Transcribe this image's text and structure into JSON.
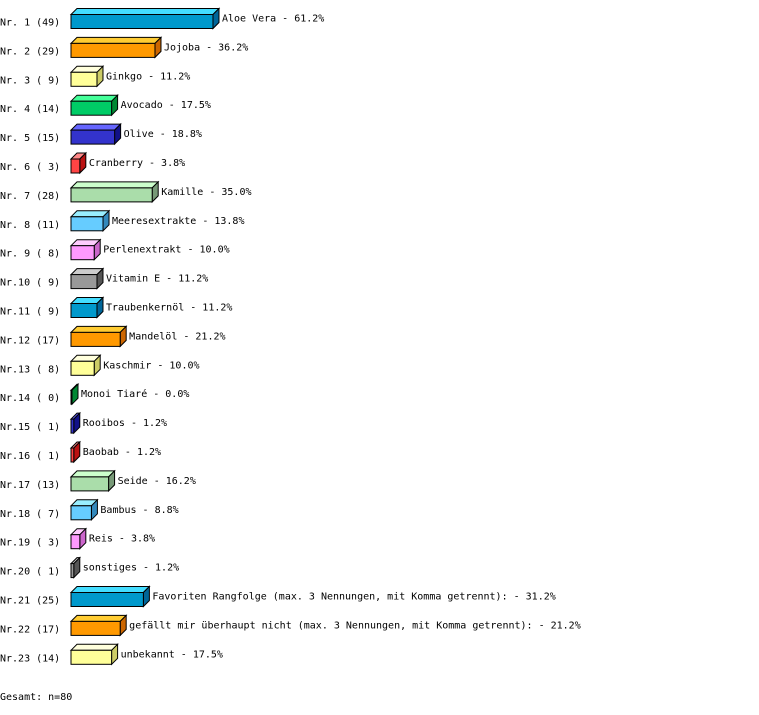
{
  "chart_data": {
    "type": "bar",
    "orientation": "horizontal",
    "style": "3d",
    "unit": "%",
    "categories": [
      "Aloe Vera",
      "Jojoba",
      "Ginkgo",
      "Avocado",
      "Olive",
      "Cranberry",
      "Kamille",
      "Meeresextrakte",
      "Perlenextrakt",
      "Vitamin E",
      "Traubenkernöl",
      "Mandelöl",
      "Kaschmir",
      "Monoi Tiaré",
      "Rooibos",
      "Baobab",
      "Seide",
      "Bambus",
      "Reis",
      "sonstiges",
      "Favoriten Rangfolge (max. 3 Nennungen, mit Komma getrennt):",
      "gefällt mir überhaupt nicht (max. 3 Nennungen, mit Komma getrennt):",
      "unbekannt"
    ],
    "row_labels": [
      "Nr. 1",
      "Nr. 2",
      "Nr. 3",
      "Nr. 4",
      "Nr. 5",
      "Nr. 6",
      "Nr. 7",
      "Nr. 8",
      "Nr. 9",
      "Nr.10",
      "Nr.11",
      "Nr.12",
      "Nr.13",
      "Nr.14",
      "Nr.15",
      "Nr.16",
      "Nr.17",
      "Nr.18",
      "Nr.19",
      "Nr.20",
      "Nr.21",
      "Nr.22",
      "Nr.23"
    ],
    "counts": [
      49,
      29,
      9,
      14,
      15,
      3,
      28,
      11,
      8,
      9,
      9,
      17,
      8,
      0,
      1,
      1,
      13,
      7,
      3,
      1,
      25,
      17,
      14
    ],
    "values": [
      61.2,
      36.2,
      11.2,
      17.5,
      18.8,
      3.8,
      35.0,
      13.8,
      10.0,
      11.2,
      11.2,
      21.2,
      10.0,
      0.0,
      1.2,
      1.2,
      16.2,
      8.8,
      3.8,
      1.2,
      31.2,
      21.2,
      17.5
    ],
    "palette": [
      {
        "front": "#0099cc",
        "top": "#44ddff",
        "side": "#006699"
      },
      {
        "front": "#ff9900",
        "top": "#ffcc33",
        "side": "#cc6600"
      },
      {
        "front": "#ffff99",
        "top": "#ffffdd",
        "side": "#cccc66"
      },
      {
        "front": "#00cc66",
        "top": "#44ff99",
        "side": "#008833"
      },
      {
        "front": "#3333cc",
        "top": "#6666ff",
        "side": "#111188"
      },
      {
        "front": "#ff4444",
        "top": "#ff8888",
        "side": "#bb1111"
      },
      {
        "front": "#aaddaa",
        "top": "#ccffcc",
        "side": "#779977"
      },
      {
        "front": "#66ccff",
        "top": "#99eeff",
        "side": "#3388bb"
      },
      {
        "front": "#ff99ff",
        "top": "#ffccff",
        "side": "#cc66cc"
      },
      {
        "front": "#999999",
        "top": "#cccccc",
        "side": "#555555"
      }
    ]
  },
  "footer": {
    "total": "Gesamt: n=80"
  }
}
